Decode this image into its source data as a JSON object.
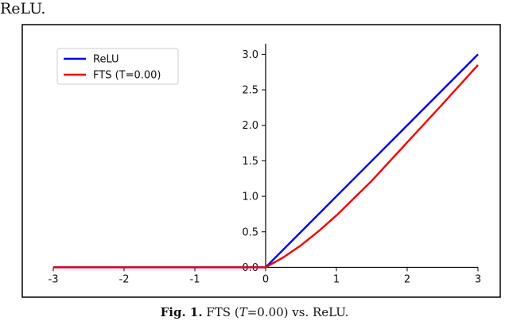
{
  "page_text": {
    "top_fragment": "ReLU.",
    "caption_label": "Fig. 1.",
    "caption_body_a": "FTS (",
    "caption_var": "T",
    "caption_body_b": "=0.00) vs. ReLU."
  },
  "colors": {
    "relu": "#0000ee",
    "fts": "#ee0000",
    "frame": "#000000",
    "axis": "#000000"
  },
  "chart_data": {
    "type": "line",
    "title": "",
    "xlabel": "",
    "ylabel": "",
    "xlim": [
      -3,
      3
    ],
    "ylim": [
      -0.04,
      3.15
    ],
    "grid": false,
    "legend_position": "top-left",
    "spines": "centered",
    "x_ticks": [
      -3,
      -2,
      -1,
      0,
      1,
      2,
      3
    ],
    "x_tick_labels": [
      "-3",
      "-2",
      "-1",
      "0",
      "1",
      "2",
      "3"
    ],
    "y_ticks": [
      0,
      0.5,
      1,
      1.5,
      2,
      2.5,
      3
    ],
    "y_tick_labels": [
      "0.0",
      "0.5",
      "1.0",
      "1.5",
      "2.0",
      "2.5",
      "3.0"
    ],
    "series": [
      {
        "name": "ReLU",
        "color": "#0000ee",
        "x": [
          -3,
          -2,
          -1,
          0,
          0.5,
          1,
          1.5,
          2,
          2.5,
          3
        ],
        "y": [
          0,
          0,
          0,
          0,
          0.5,
          1.0,
          1.5,
          2.0,
          2.5,
          3.0
        ]
      },
      {
        "name": "FTS (T=0.00)",
        "color": "#ee0000",
        "x": [
          -3,
          -2,
          -1,
          0,
          0.25,
          0.5,
          0.75,
          1,
          1.5,
          2,
          2.5,
          3
        ],
        "y": [
          0,
          0,
          0,
          0,
          0.14,
          0.31,
          0.51,
          0.73,
          1.22,
          1.76,
          2.3,
          2.85
        ]
      }
    ]
  }
}
